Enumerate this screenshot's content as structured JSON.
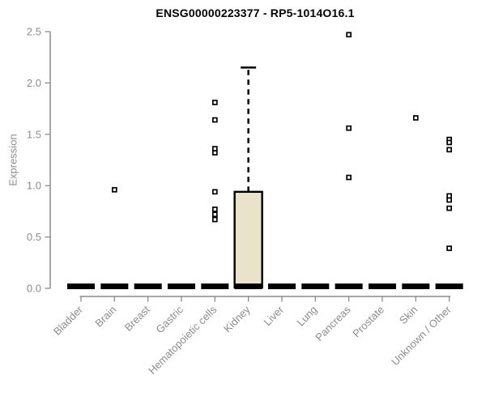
{
  "chart_data": {
    "type": "boxplot",
    "title": "ENSG00000223377 - RP5-1014O16.1",
    "ylabel": "Expression",
    "ylim": [
      0,
      2.5
    ],
    "yticks": [
      "0.0",
      "0.5",
      "1.0",
      "1.5",
      "2.0",
      "2.5"
    ],
    "grid": false,
    "legend": null,
    "categories": [
      "Bladder",
      "Brain",
      "Breast",
      "Gastric",
      "Hematopoietic cells",
      "Kidney",
      "Liver",
      "Lung",
      "Pancreas",
      "Prostate",
      "Skin",
      "Unknown / Other"
    ],
    "boxes": [
      {
        "category": "Bladder",
        "q1": 0,
        "median": 0,
        "q3": 0,
        "whisker_low": 0,
        "whisker_high": 0,
        "outliers": []
      },
      {
        "category": "Brain",
        "q1": 0,
        "median": 0,
        "q3": 0,
        "whisker_low": 0,
        "whisker_high": 0,
        "outliers": [
          0.96
        ]
      },
      {
        "category": "Breast",
        "q1": 0,
        "median": 0,
        "q3": 0,
        "whisker_low": 0,
        "whisker_high": 0,
        "outliers": []
      },
      {
        "category": "Gastric",
        "q1": 0,
        "median": 0,
        "q3": 0,
        "whisker_low": 0,
        "whisker_high": 0,
        "outliers": []
      },
      {
        "category": "Hematopoietic cells",
        "q1": 0,
        "median": 0,
        "q3": 0,
        "whisker_low": 0,
        "whisker_high": 0,
        "outliers": [
          1.81,
          1.64,
          1.36,
          1.32,
          0.94,
          0.77,
          0.72,
          0.67
        ]
      },
      {
        "category": "Kidney",
        "q1": 0,
        "median": 0,
        "q3": 0.94,
        "whisker_low": 0,
        "whisker_high": 2.15,
        "outliers": []
      },
      {
        "category": "Liver",
        "q1": 0,
        "median": 0,
        "q3": 0,
        "whisker_low": 0,
        "whisker_high": 0,
        "outliers": []
      },
      {
        "category": "Lung",
        "q1": 0,
        "median": 0,
        "q3": 0,
        "whisker_low": 0,
        "whisker_high": 0,
        "outliers": []
      },
      {
        "category": "Pancreas",
        "q1": 0,
        "median": 0,
        "q3": 0,
        "whisker_low": 0,
        "whisker_high": 0,
        "outliers": [
          2.47,
          1.56,
          1.08
        ]
      },
      {
        "category": "Prostate",
        "q1": 0,
        "median": 0,
        "q3": 0,
        "whisker_low": 0,
        "whisker_high": 0,
        "outliers": []
      },
      {
        "category": "Skin",
        "q1": 0,
        "median": 0,
        "q3": 0,
        "whisker_low": 0,
        "whisker_high": 0,
        "outliers": [
          1.66
        ]
      },
      {
        "category": "Unknown / Other",
        "q1": 0,
        "median": 0,
        "q3": 0,
        "whisker_low": 0,
        "whisker_high": 0,
        "outliers": [
          1.45,
          1.42,
          1.35,
          0.9,
          0.86,
          0.78,
          0.39
        ]
      }
    ],
    "colors": {
      "box_fill": "#e9e4c9",
      "box_border": "#000000",
      "median": "#000000",
      "whisker": "#000000",
      "outlier_fill": "#ffffff",
      "outlier_border": "#000000",
      "axis": "#8c8c8c",
      "tick_label": "#8c8c8c",
      "title": "#000000"
    }
  }
}
